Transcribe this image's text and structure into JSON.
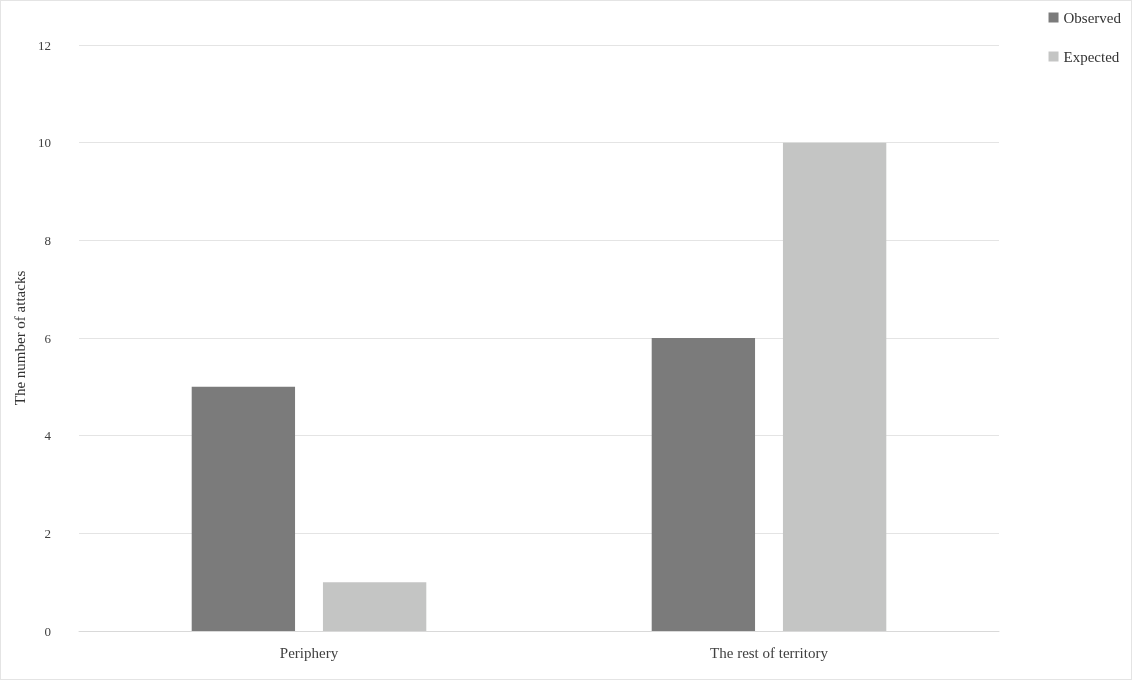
{
  "chart_data": {
    "type": "bar",
    "ylabel": "The number of attacks",
    "categories": [
      "Periphery",
      "The rest of territory"
    ],
    "series": [
      {
        "name": "Observed",
        "color": "#7b7b7b",
        "values": [
          5,
          6
        ]
      },
      {
        "name": "Expected",
        "color": "#c4c5c4",
        "values": [
          1,
          10
        ]
      }
    ],
    "ylim": [
      0,
      12
    ],
    "yticks": [
      0,
      2,
      4,
      6,
      8,
      10,
      12
    ],
    "grid": "y",
    "legend": "top right"
  }
}
